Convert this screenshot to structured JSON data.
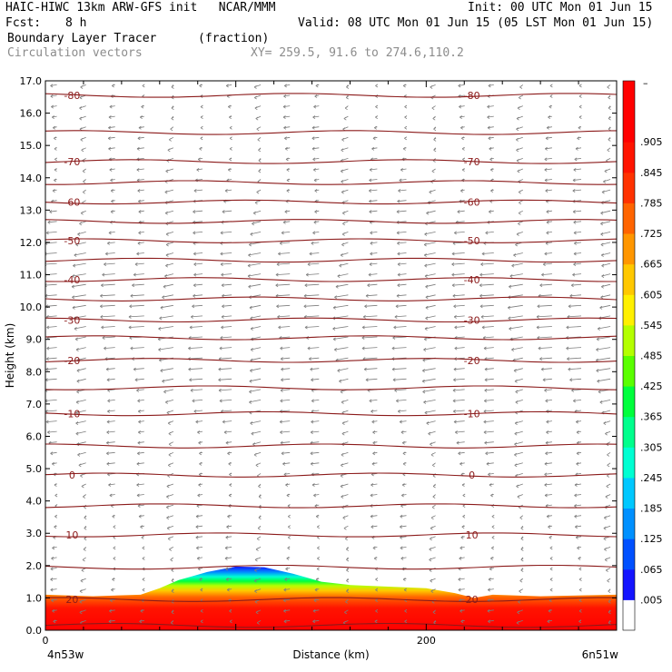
{
  "header": {
    "line1_left": "HAIC-HIWC 13km ARW-GFS init   NCAR/MMM",
    "line1_right": "Init: 00 UTC Mon 01 Jun 15",
    "fcst_label": "Fcst:",
    "fcst_value": "8 h",
    "valid": "Valid: 08 UTC Mon 01 Jun 15 (05 LST Mon 01 Jun 15)",
    "field_name": "Boundary Layer Tracer",
    "field_units": "(fraction)",
    "vector_label": "Circulation vectors",
    "xy_label": "XY= 259.5, 91.6 to 274.6,110.2"
  },
  "chart_data": {
    "type": "heatmap",
    "ylabel": "Height (km)",
    "xlabel": "Distance (km)",
    "ylim": [
      0,
      17
    ],
    "xlim": [
      0,
      300
    ],
    "y_ticks": [
      "0.0",
      "1.0",
      "2.0",
      "3.0",
      "4.0",
      "5.0",
      "6.0",
      "7.0",
      "8.0",
      "9.0",
      "10.0",
      "11.0",
      "12.0",
      "13.0",
      "14.0",
      "15.0",
      "16.0",
      "17.0"
    ],
    "x_ticks": [
      {
        "value": 0,
        "label": "0"
      },
      {
        "value": 200,
        "label": "200"
      }
    ],
    "x_end_labels": {
      "left": "4n53w",
      "right": "6n51w"
    },
    "colorbar": {
      "labels": [
        ".905",
        ".845",
        ".785",
        ".725",
        ".665",
        ".605",
        ".545",
        ".485",
        ".425",
        ".365",
        ".305",
        ".245",
        ".185",
        ".125",
        ".065",
        ".005"
      ],
      "top_mark": "–",
      "colors": [
        "#ffffff",
        "#1414ff",
        "#0050ff",
        "#0090ff",
        "#00c8ff",
        "#00ffd2",
        "#00ff8c",
        "#00ff3c",
        "#5aff00",
        "#b4ff00",
        "#fff000",
        "#ffc800",
        "#ff9600",
        "#ff6400",
        "#ff3200",
        "#ff1400",
        "#ff0000",
        "#ff0000"
      ]
    },
    "tracer_top_km": [
      {
        "x": 0,
        "y": 1.1
      },
      {
        "x": 25,
        "y": 1.05
      },
      {
        "x": 50,
        "y": 1.1
      },
      {
        "x": 60,
        "y": 1.3
      },
      {
        "x": 70,
        "y": 1.55
      },
      {
        "x": 85,
        "y": 1.8
      },
      {
        "x": 100,
        "y": 1.97
      },
      {
        "x": 115,
        "y": 1.95
      },
      {
        "x": 130,
        "y": 1.75
      },
      {
        "x": 145,
        "y": 1.5
      },
      {
        "x": 160,
        "y": 1.4
      },
      {
        "x": 180,
        "y": 1.35
      },
      {
        "x": 200,
        "y": 1.3
      },
      {
        "x": 215,
        "y": 1.15
      },
      {
        "x": 225,
        "y": 1.0
      },
      {
        "x": 235,
        "y": 1.1
      },
      {
        "x": 260,
        "y": 1.05
      },
      {
        "x": 300,
        "y": 1.1
      }
    ],
    "temperature_contours": [
      {
        "height_km": 0.15,
        "label": ""
      },
      {
        "height_km": 0.95,
        "label": "20"
      },
      {
        "height_km": 1.95,
        "label": ""
      },
      {
        "height_km": 2.95,
        "label": "10"
      },
      {
        "height_km": 3.85,
        "label": ""
      },
      {
        "height_km": 4.8,
        "label": "0"
      },
      {
        "height_km": 5.7,
        "label": ""
      },
      {
        "height_km": 6.7,
        "label": "-10"
      },
      {
        "height_km": 7.5,
        "label": ""
      },
      {
        "height_km": 8.35,
        "label": "-20"
      },
      {
        "height_km": 9.05,
        "label": ""
      },
      {
        "height_km": 9.6,
        "label": "-30"
      },
      {
        "height_km": 10.25,
        "label": ""
      },
      {
        "height_km": 10.85,
        "label": "-40"
      },
      {
        "height_km": 11.45,
        "label": ""
      },
      {
        "height_km": 12.05,
        "label": "-50"
      },
      {
        "height_km": 12.65,
        "label": ""
      },
      {
        "height_km": 13.25,
        "label": "-60"
      },
      {
        "height_km": 13.85,
        "label": ""
      },
      {
        "height_km": 14.5,
        "label": "-70"
      },
      {
        "height_km": 15.4,
        "label": ""
      },
      {
        "height_km": 16.55,
        "label": "-80"
      }
    ],
    "colors": {
      "contour": "#8b1a1a",
      "vector": "#7d7d7d",
      "axis": "#000000"
    }
  }
}
